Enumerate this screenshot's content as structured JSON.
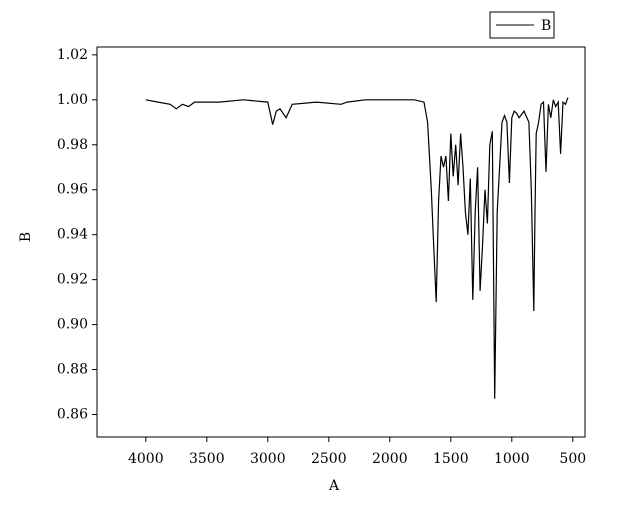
{
  "chart_data": {
    "type": "line",
    "xlabel": "A",
    "ylabel": "B",
    "x": [
      4000,
      3900,
      3800,
      3750,
      3700,
      3650,
      3600,
      3400,
      3200,
      3000,
      2960,
      2930,
      2900,
      2850,
      2800,
      2600,
      2400,
      2350,
      2200,
      1800,
      1720,
      1690,
      1660,
      1640,
      1620,
      1600,
      1580,
      1560,
      1540,
      1520,
      1500,
      1480,
      1460,
      1440,
      1420,
      1400,
      1380,
      1360,
      1340,
      1320,
      1300,
      1280,
      1260,
      1240,
      1220,
      1200,
      1180,
      1160,
      1140,
      1120,
      1100,
      1080,
      1060,
      1040,
      1020,
      1000,
      980,
      960,
      940,
      900,
      860,
      840,
      820,
      810,
      800,
      780,
      760,
      740,
      720,
      700,
      680,
      660,
      640,
      620,
      600,
      580,
      560,
      540
    ],
    "series": [
      {
        "name": "B",
        "color": "#000000",
        "values": [
          1.0,
          0.999,
          0.998,
          0.996,
          0.998,
          0.997,
          0.999,
          0.999,
          1.0,
          0.999,
          0.989,
          0.995,
          0.996,
          0.992,
          0.998,
          0.999,
          0.998,
          0.999,
          1.0,
          1.0,
          0.999,
          0.99,
          0.96,
          0.935,
          0.91,
          0.955,
          0.975,
          0.97,
          0.975,
          0.955,
          0.985,
          0.966,
          0.98,
          0.962,
          0.985,
          0.97,
          0.95,
          0.94,
          0.965,
          0.911,
          0.95,
          0.97,
          0.915,
          0.935,
          0.96,
          0.945,
          0.98,
          0.986,
          0.867,
          0.95,
          0.97,
          0.99,
          0.993,
          0.99,
          0.963,
          0.992,
          0.995,
          0.994,
          0.992,
          0.995,
          0.99,
          0.96,
          0.906,
          0.95,
          0.985,
          0.99,
          0.998,
          0.999,
          0.968,
          0.998,
          0.992,
          1.0,
          0.997,
          0.999,
          0.976,
          0.999,
          0.998,
          1.001
        ]
      }
    ],
    "xlim": [
      4400,
      400
    ],
    "xticks": [
      4000,
      3500,
      3000,
      2500,
      2000,
      1500,
      1000,
      500
    ],
    "ylim": [
      0.85,
      1.0235
    ],
    "yticks": [
      1.02,
      {
        "value": 1.0,
        "label": "1.00"
      },
      0.98,
      0.96,
      0.94,
      0.92,
      {
        "value": 0.9,
        "label": "0.90"
      },
      0.88,
      0.86
    ],
    "legend": "top-right"
  }
}
